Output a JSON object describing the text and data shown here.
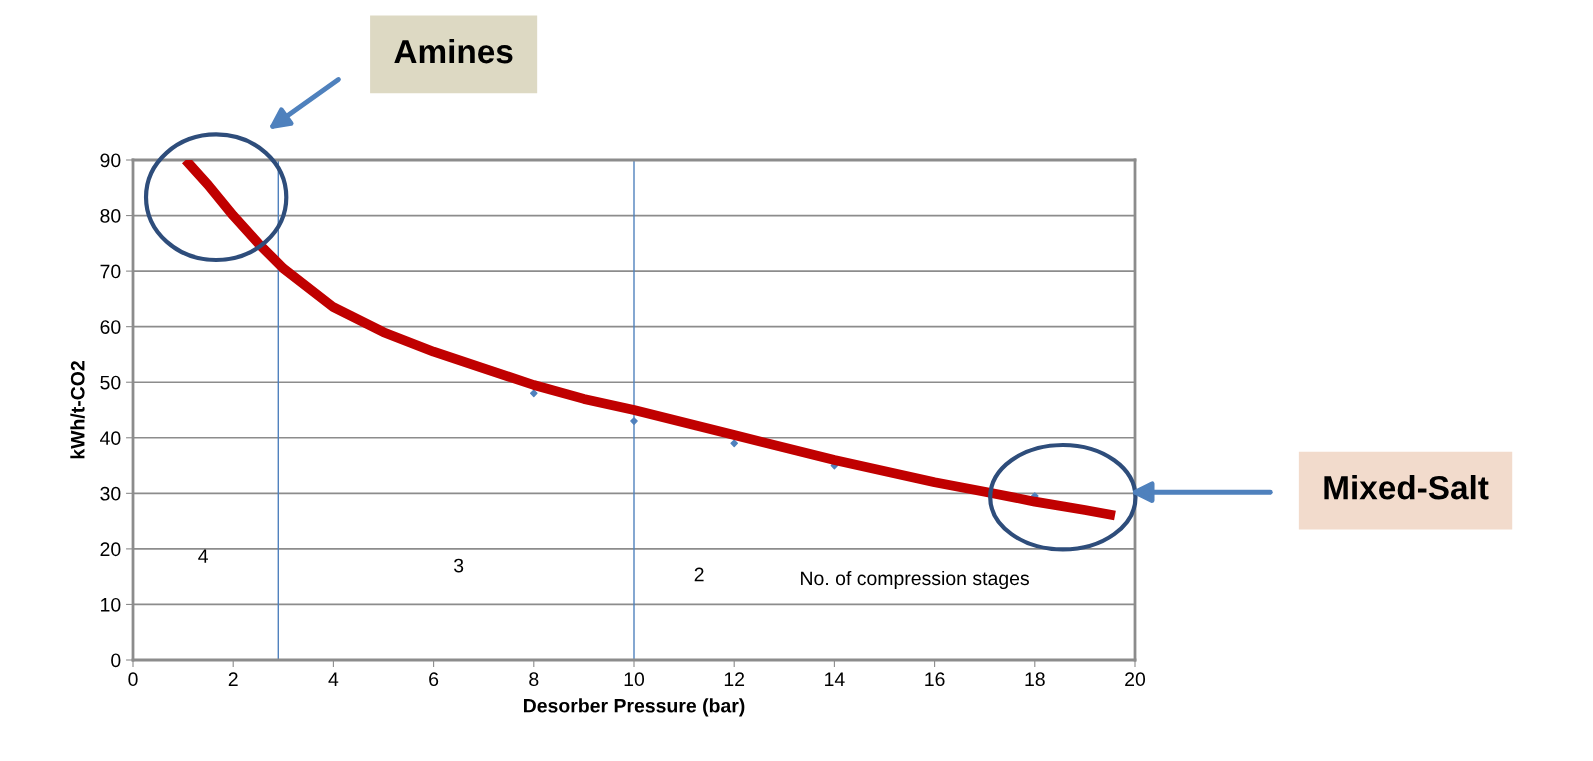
{
  "chart_data": {
    "type": "line",
    "xlabel": "Desorber Pressure (bar)",
    "ylabel": "kWh/t-CO2",
    "xlim": [
      0,
      20
    ],
    "xticks": [
      0,
      2,
      4,
      6,
      8,
      10,
      12,
      14,
      16,
      18,
      20
    ],
    "ylim": [
      0,
      90
    ],
    "yticks": [
      0,
      10,
      20,
      30,
      40,
      50,
      60,
      70,
      80,
      90
    ],
    "grid": "y",
    "series": [
      {
        "color": "#c00000",
        "x": [
          1.05,
          1.5,
          2,
          2.5,
          3,
          4,
          5,
          6,
          7,
          8,
          9,
          10,
          12,
          14,
          16,
          17,
          18,
          19,
          19.6
        ],
        "values": [
          90,
          85.5,
          80,
          75,
          70.5,
          63.5,
          59,
          55.5,
          52.5,
          49.5,
          47,
          45,
          40.5,
          36,
          32,
          30.3,
          28.5,
          27,
          26
        ],
        "marker": "none"
      },
      {
        "type": "scatter",
        "color": "#4f81bd",
        "x": [
          8,
          10,
          12,
          14,
          18
        ],
        "values": [
          48,
          43,
          39,
          35,
          29.5
        ],
        "marker": "diamond"
      }
    ],
    "ref_lines": [
      {
        "axis": "x",
        "value": 2.9,
        "color": "#4f81bd"
      },
      {
        "axis": "x",
        "value": 10,
        "color": "#4f81bd"
      }
    ],
    "annotations": [
      "Amines",
      "Mixed-Salt",
      "4",
      "3",
      "2",
      "No. of compression stages"
    ]
  }
}
